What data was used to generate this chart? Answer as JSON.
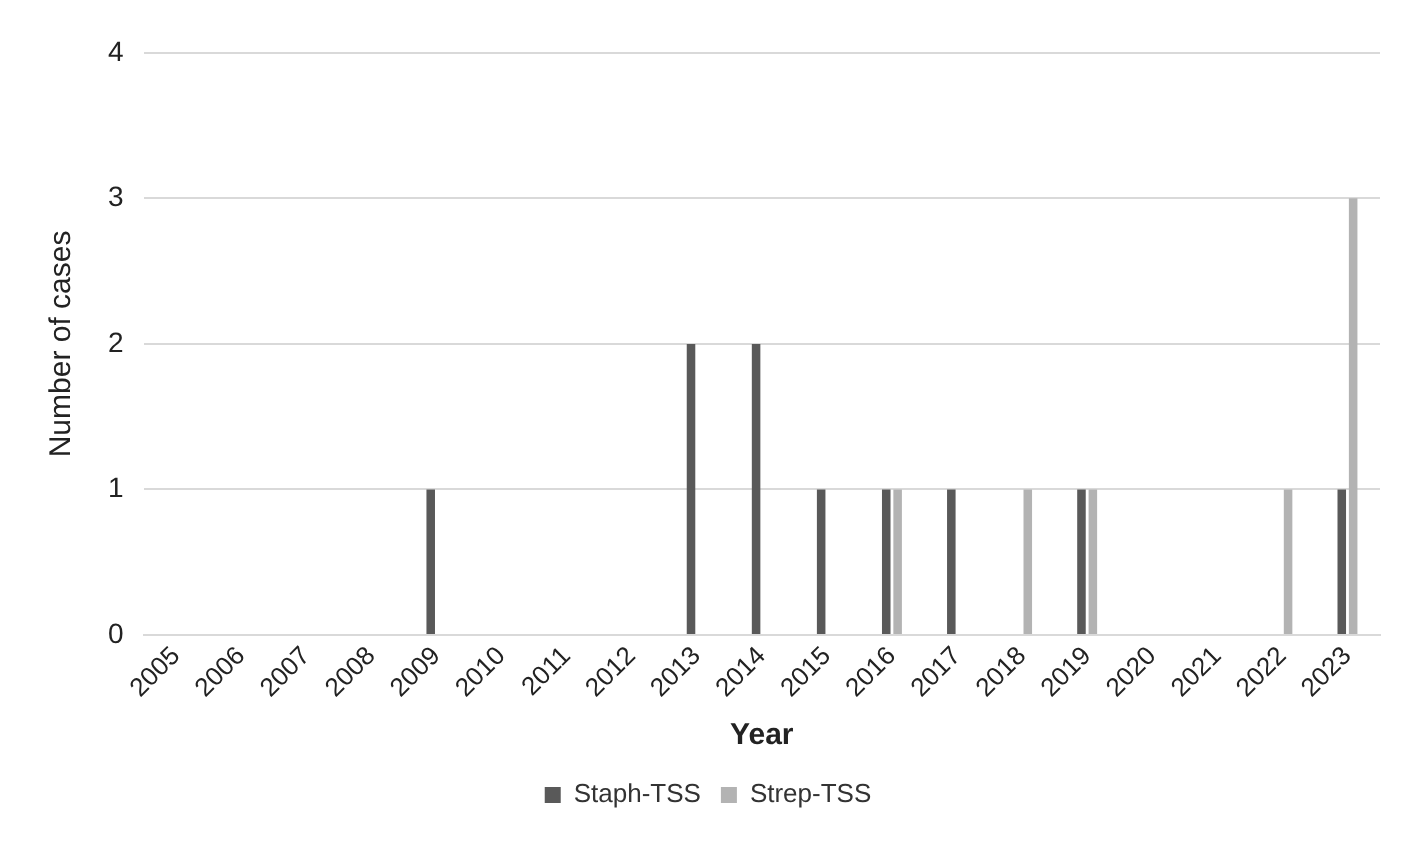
{
  "chart_data": {
    "type": "bar",
    "xlabel": "Year",
    "ylabel": "Number of cases",
    "categories": [
      "2005",
      "2006",
      "2007",
      "2008",
      "2009",
      "2010",
      "2011",
      "2012",
      "2013",
      "2014",
      "2015",
      "2016",
      "2017",
      "2018",
      "2019",
      "2020",
      "2021",
      "2022",
      "2023"
    ],
    "series": [
      {
        "name": "Staph-TSS",
        "color": "#595959",
        "values": [
          0,
          0,
          0,
          0,
          1,
          0,
          0,
          0,
          2,
          2,
          1,
          1,
          1,
          0,
          1,
          0,
          0,
          0,
          1
        ]
      },
      {
        "name": "Strep-TSS",
        "color": "#b3b3b3",
        "values": [
          0,
          0,
          0,
          0,
          0,
          0,
          0,
          0,
          0,
          0,
          0,
          1,
          0,
          1,
          1,
          0,
          0,
          1,
          3
        ]
      }
    ],
    "ylim": [
      0,
      4
    ],
    "yticks": [
      0,
      1,
      2,
      3,
      4
    ],
    "grid": "y",
    "legend": "bottom"
  }
}
